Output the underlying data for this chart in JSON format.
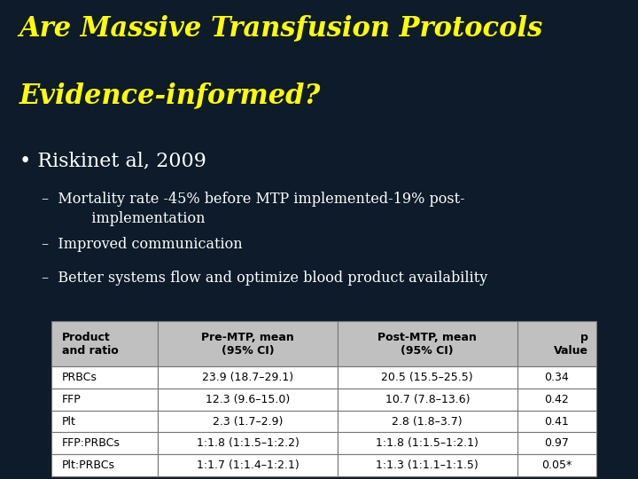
{
  "bg_color": "#0d1b2a",
  "title_line1": "Are Massive Transfusion Protocols",
  "title_line2": "Evidence-informed?",
  "title_color": "#ffff00",
  "title_fontsize": 22,
  "bullet_color": "#ffffff",
  "bullet_text": "Riskinet al, 2009",
  "bullet_fontsize": 16,
  "dash_items": [
    "Mortality rate -45% before MTP implemented-19% post-\n           implementation",
    "Improved communication",
    "Better systems flow and optimize blood product availability"
  ],
  "dash_fontsize": 11.5,
  "col_headers": [
    "Product\nand ratio",
    "Pre-MTP, mean\n(95% CI)",
    "Post-MTP, mean\n(95% CI)",
    "p\nValue"
  ],
  "rows": [
    [
      "PRBCs",
      "23.9 (18.7–29.1)",
      "20.5 (15.5–25.5)",
      "0.34"
    ],
    [
      "FFP",
      "12.3 (9.6–15.0)",
      "10.7 (7.8–13.6)",
      "0.42"
    ],
    [
      "Plt",
      "2.3 (1.7–2.9)",
      "2.8 (1.8–3.7)",
      "0.41"
    ],
    [
      "FFP:PRBCs",
      "1:1.8 (1:1.5–1:2.2)",
      "1:1.8 (1:1.5–1:2.1)",
      "0.97"
    ],
    [
      "Plt:PRBCs",
      "1:1.7 (1:1.4–1:2.1)",
      "1:1.3 (1:1.1–1:1.5)",
      "0.05*"
    ]
  ]
}
